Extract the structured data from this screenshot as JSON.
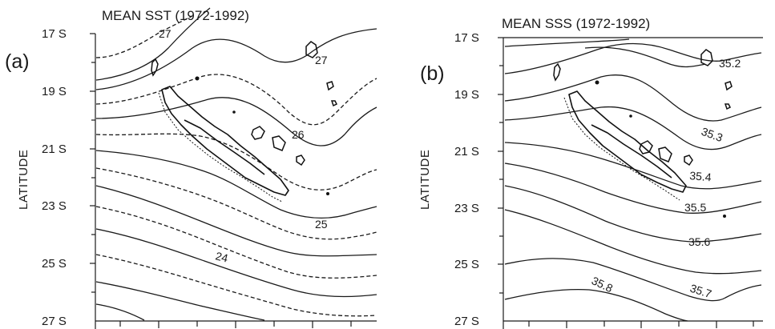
{
  "panels": [
    {
      "letter": "(a)",
      "title": "MEAN SST (1972-1992)",
      "contour_labels": [
        "27",
        "27",
        "26",
        "25",
        "24"
      ]
    },
    {
      "letter": "(b)",
      "title": "MEAN SSS (1972-1992)",
      "contour_labels": [
        "35.2",
        "35.3",
        "35.4",
        "35.5",
        "35.6",
        "35.7",
        "35.8"
      ]
    }
  ],
  "y_axis": {
    "label": "LATITUDE",
    "ticks": [
      "17 S",
      "19 S",
      "21 S",
      "23 S",
      "25 S",
      "27 S"
    ]
  },
  "colors": {
    "ink": "#1a1a1a",
    "background": "#ffffff"
  }
}
